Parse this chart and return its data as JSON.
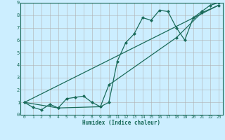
{
  "xlabel": "Humidex (Indice chaleur)",
  "bg_color": "#cceeff",
  "grid_color": "#b0b0b0",
  "line_color": "#1a6b5a",
  "xlim": [
    -0.5,
    23.5
  ],
  "ylim": [
    0,
    9
  ],
  "xticks": [
    0,
    1,
    2,
    3,
    4,
    5,
    6,
    7,
    8,
    9,
    10,
    11,
    12,
    13,
    14,
    15,
    16,
    17,
    18,
    19,
    20,
    21,
    22,
    23
  ],
  "yticks": [
    0,
    1,
    2,
    3,
    4,
    5,
    6,
    7,
    8,
    9
  ],
  "line1_x": [
    0,
    1,
    2,
    3,
    4,
    5,
    6,
    7,
    8,
    9,
    10,
    11,
    12,
    13,
    14,
    15,
    16,
    17,
    18,
    19,
    20,
    21,
    22,
    23
  ],
  "line1_y": [
    1.0,
    0.6,
    0.4,
    0.85,
    0.55,
    1.3,
    1.4,
    1.5,
    1.0,
    0.65,
    1.0,
    4.3,
    5.8,
    6.5,
    7.8,
    7.6,
    8.4,
    8.3,
    7.0,
    6.0,
    7.8,
    8.3,
    8.8,
    9.0
  ],
  "line2_x": [
    0,
    4,
    9,
    10,
    18,
    21,
    23
  ],
  "line2_y": [
    1.0,
    0.55,
    0.65,
    2.4,
    6.2,
    8.2,
    8.8
  ],
  "line3_x": [
    0,
    23
  ],
  "line3_y": [
    1.0,
    8.8
  ]
}
